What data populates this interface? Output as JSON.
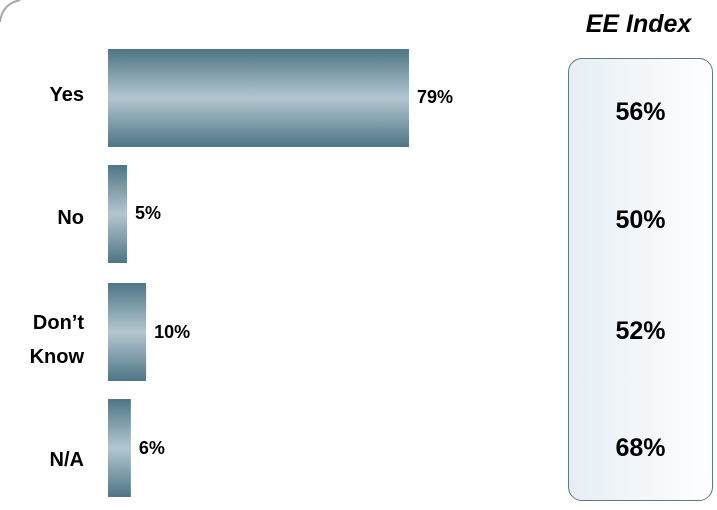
{
  "chart_data": {
    "type": "bar",
    "orientation": "horizontal",
    "categories": [
      "Yes",
      "No",
      "Don’t Know",
      "N/A"
    ],
    "series": [
      {
        "values": [
          79,
          5,
          10,
          6
        ]
      }
    ],
    "value_labels": [
      "79%",
      "5%",
      "10%",
      "6%"
    ],
    "xlim": [
      0,
      100
    ],
    "grid": false,
    "legend": "none",
    "bar_color_dark": "#4f7585",
    "bar_color_light": "#b3c6d0"
  },
  "ee_index": {
    "title": "EE Index",
    "values": [
      "56%",
      "50%",
      "52%",
      "68%"
    ]
  }
}
